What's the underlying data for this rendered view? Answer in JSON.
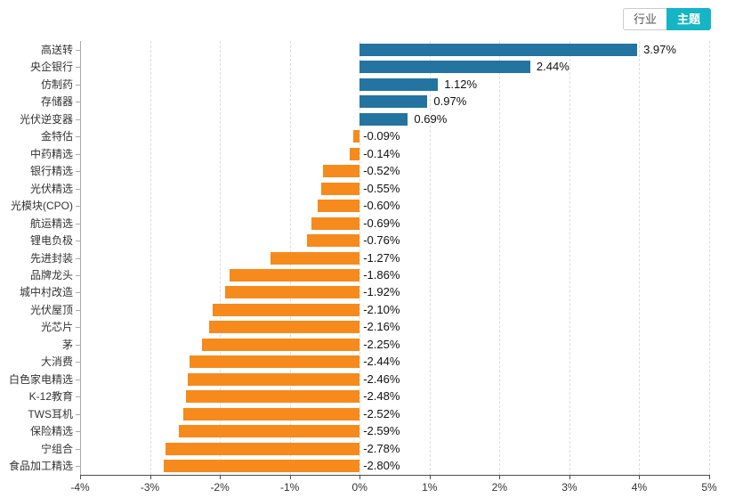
{
  "view_toggle": {
    "options": [
      {
        "label": "行业",
        "active": false
      },
      {
        "label": "主题",
        "active": true
      }
    ],
    "active_bg": "#15b5c5",
    "active_text": "#ffffff"
  },
  "colors": {
    "positive_bar": "#2374a1",
    "negative_bar": "#f68a1c",
    "grid": "#dddddd",
    "axis_x": "#4d4d4d",
    "axis_y": "#aaaaaa",
    "label_text": "#333333",
    "value_text": "#111111"
  },
  "chart_data": {
    "type": "bar",
    "orientation": "horizontal",
    "title": "",
    "xlabel": "",
    "ylabel": "",
    "xlim": [
      -4,
      5
    ],
    "grid": "vertical-dashed",
    "legend": "none",
    "categories": [
      "高送转",
      "央企银行",
      "仿制药",
      "存储器",
      "光伏逆变器",
      "金特估",
      "中药精选",
      "银行精选",
      "光伏精选",
      "光模块(CPO)",
      "航运精选",
      "锂电负极",
      "先进封装",
      "品牌龙头",
      "城中村改造",
      "光伏屋顶",
      "光芯片",
      "茅",
      "大消费",
      "白色家电精选",
      "K-12教育",
      "TWS耳机",
      "保险精选",
      "宁组合",
      "食品加工精选"
    ],
    "values": [
      3.97,
      2.44,
      1.12,
      0.97,
      0.69,
      -0.09,
      -0.14,
      -0.52,
      -0.55,
      -0.6,
      -0.69,
      -0.76,
      -1.27,
      -1.86,
      -1.92,
      -2.1,
      -2.16,
      -2.25,
      -2.44,
      -2.46,
      -2.48,
      -2.52,
      -2.59,
      -2.78,
      -2.8
    ],
    "value_labels": [
      "3.97%",
      "2.44%",
      "1.12%",
      "0.97%",
      "0.69%",
      "-0.09%",
      "-0.14%",
      "-0.52%",
      "-0.55%",
      "-0.60%",
      "-0.69%",
      "-0.76%",
      "-1.27%",
      "-1.86%",
      "-1.92%",
      "-2.10%",
      "-2.16%",
      "-2.25%",
      "-2.44%",
      "-2.46%",
      "-2.48%",
      "-2.52%",
      "-2.59%",
      "-2.78%",
      "-2.80%"
    ],
    "x_tick_values": [
      -4,
      -3,
      -2,
      -1,
      0,
      1,
      2,
      3,
      4,
      5
    ],
    "x_tick_labels": [
      "-4%",
      "-3%",
      "-2%",
      "-1%",
      "0%",
      "1%",
      "2%",
      "3%",
      "4%",
      "5%"
    ],
    "positive_color": "#2374a1",
    "negative_color": "#f68a1c"
  }
}
